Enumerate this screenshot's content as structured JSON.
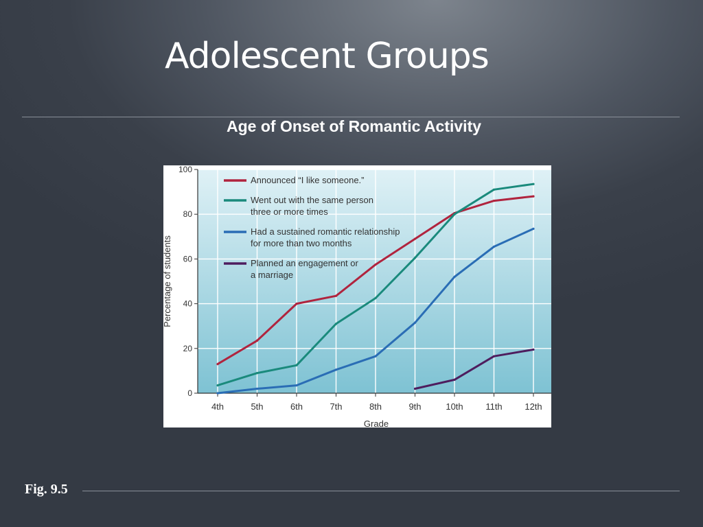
{
  "slide": {
    "title": "Adolescent Groups",
    "chart_heading": "Age of Onset of Romantic Activity",
    "figure_label": "Fig. 9.5"
  },
  "colors": {
    "plot_background_top": "#dff1f6",
    "plot_background_bottom": "#7ec2d3",
    "grid": "#ffffff",
    "announced": "#b0243e",
    "went_out": "#1a8a7c",
    "sustained": "#2a6db5",
    "planned": "#4e1d5e"
  },
  "chart_data": {
    "type": "line",
    "title": "",
    "xlabel": "Grade",
    "ylabel": "Percentage of students",
    "categories": [
      "4th",
      "5th",
      "6th",
      "7th",
      "8th",
      "9th",
      "10th",
      "11th",
      "12th"
    ],
    "ylim": [
      0,
      100
    ],
    "yticks": [
      0,
      20,
      40,
      60,
      80,
      100
    ],
    "grid": true,
    "legend_position": "top-left",
    "series": [
      {
        "name": "Announced “I like someone.”",
        "color": "#b0243e",
        "values": [
          13,
          23.5,
          40,
          43.5,
          57.5,
          69,
          80.5,
          86,
          88
        ]
      },
      {
        "name": "Went out with the same person three or more times",
        "legend_lines": [
          "Went out with the same person",
          "three or more times"
        ],
        "color": "#1a8a7c",
        "values": [
          3.5,
          9,
          12.5,
          31,
          42.5,
          60.5,
          80,
          91,
          93.5
        ]
      },
      {
        "name": "Had a sustained romantic relationship for more than two months",
        "legend_lines": [
          "Had a sustained romantic relationship",
          "for more than two months"
        ],
        "color": "#2a6db5",
        "values": [
          0,
          2,
          3.5,
          10.5,
          16.5,
          31.5,
          52,
          65.5,
          73.5
        ]
      },
      {
        "name": "Planned an engagement or a marriage",
        "legend_lines": [
          "Planned an engagement or",
          "a marriage"
        ],
        "color": "#4e1d5e",
        "values": [
          null,
          null,
          null,
          null,
          null,
          2,
          6,
          16.5,
          19.5
        ]
      }
    ]
  }
}
